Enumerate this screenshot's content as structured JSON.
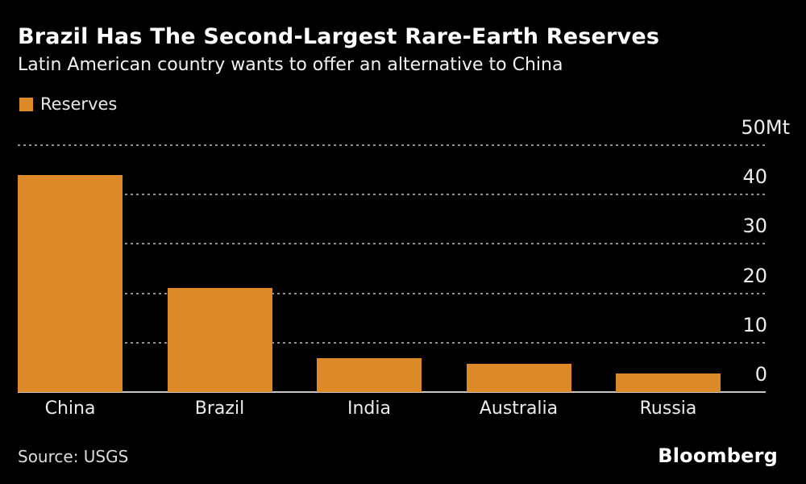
{
  "header": {
    "title": "Brazil Has The Second-Largest Rare-Earth Reserves",
    "subtitle": "Latin American country wants to offer an alternative to China"
  },
  "legend": {
    "label": "Reserves",
    "swatch_color": "#DC8A28"
  },
  "chart_data": {
    "type": "bar",
    "title": "Brazil Has The Second-Largest Rare-Earth Reserves",
    "subtitle": "Latin American country wants to offer an alternative to China",
    "series_name": "Reserves",
    "categories": [
      "China",
      "Brazil",
      "India",
      "Australia",
      "Russia"
    ],
    "values": [
      44,
      21,
      6.9,
      5.7,
      3.8
    ],
    "unit": "Mt",
    "xlabel": "",
    "ylabel": "",
    "ylim": [
      0,
      50
    ],
    "yticks": [
      0,
      10,
      20,
      30,
      40,
      50
    ],
    "ytick_labels": [
      "0",
      "10",
      "20",
      "30",
      "40",
      "50Mt"
    ],
    "axis_side": "right",
    "grid": "horizontal-dotted",
    "legend_position": "top-left",
    "bar_color": "#DC8A28",
    "background_color": "#000000",
    "grid_color": "#8f8f8f",
    "baseline_color": "#c6c6c6"
  },
  "footer": {
    "source": "Source: USGS",
    "brand": "Bloomberg"
  }
}
